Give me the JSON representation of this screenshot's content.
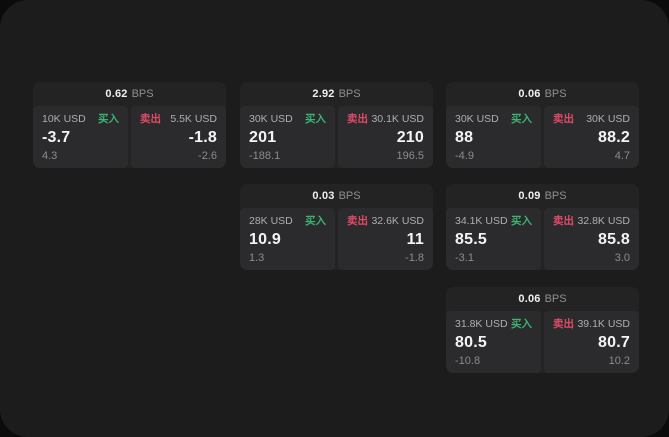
{
  "labels": {
    "buy": "买入",
    "sell": "卖出",
    "bps_unit": "BPS"
  },
  "colors": {
    "buy": "#3cb370",
    "sell": "#dd4b66",
    "window_bg": "#1c1c1d",
    "card_bg": "#232324",
    "panel_bg": "#2b2b2d"
  },
  "cards": [
    {
      "bps": "0.62",
      "buy": {
        "amount": "10K USD",
        "value": "-3.7",
        "delta": "4.3"
      },
      "sell": {
        "amount": "5.5K USD",
        "value": "-1.8",
        "delta": "-2.6"
      }
    },
    {
      "bps": "2.92",
      "buy": {
        "amount": "30K USD",
        "value": "201",
        "delta": "-188.1"
      },
      "sell": {
        "amount": "30.1K USD",
        "value": "210",
        "delta": "196.5"
      }
    },
    {
      "bps": "0.06",
      "buy": {
        "amount": "30K USD",
        "value": "88",
        "delta": "-4.9"
      },
      "sell": {
        "amount": "30K USD",
        "value": "88.2",
        "delta": "4.7"
      }
    },
    {
      "bps": "0.03",
      "buy": {
        "amount": "28K USD",
        "value": "10.9",
        "delta": "1.3"
      },
      "sell": {
        "amount": "32.6K USD",
        "value": "11",
        "delta": "-1.8"
      }
    },
    {
      "bps": "0.09",
      "buy": {
        "amount": "34.1K USD",
        "value": "85.5",
        "delta": "-3.1"
      },
      "sell": {
        "amount": "32.8K USD",
        "value": "85.8",
        "delta": "3.0"
      }
    },
    {
      "bps": "0.06",
      "buy": {
        "amount": "31.8K USD",
        "value": "80.5",
        "delta": "-10.8"
      },
      "sell": {
        "amount": "39.1K USD",
        "value": "80.7",
        "delta": "10.2"
      }
    }
  ]
}
